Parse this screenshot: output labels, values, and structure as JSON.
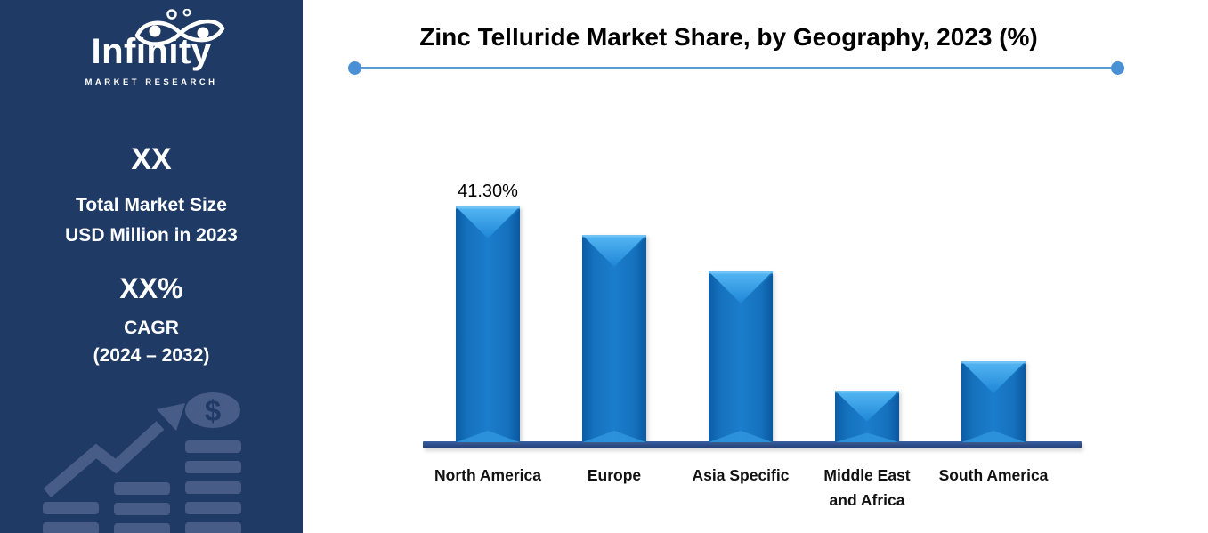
{
  "sidebar": {
    "background_color": "#1F3A64",
    "logo": {
      "name": "Infinity",
      "subtitle": "MARKET RESEARCH"
    },
    "market_size": {
      "value": "XX",
      "line1": "Total Market Size",
      "line2": "USD Million in 2023"
    },
    "cagr": {
      "value": "XX%",
      "label": "CAGR",
      "period": "(2024 – 2032)"
    },
    "graphic": {
      "coin_symbol": "$",
      "color": "#475D87"
    }
  },
  "header": {
    "divider": {
      "line_color": "#5B9BD5",
      "dot_color": "#4A90D5"
    }
  },
  "chart_data": {
    "type": "bar",
    "title": "Zinc Telluride Market Share, by Geography, 2023 (%)",
    "categories": [
      "North America",
      "Europe",
      "Asia Specific",
      "Middle East and Africa",
      "South America"
    ],
    "category_lines": [
      [
        "North America"
      ],
      [
        "Europe"
      ],
      [
        "Asia Specific"
      ],
      [
        "Middle East",
        "and Africa"
      ],
      [
        "South America"
      ]
    ],
    "values": [
      41.3,
      36.3,
      30.0,
      9.0,
      14.2
    ],
    "data_labels": [
      "41.30%",
      "",
      "",
      "",
      ""
    ],
    "unit": "%",
    "ylim": [
      0,
      45
    ],
    "grid": false,
    "legend": "none",
    "bar_color": "#1273BF",
    "bar_bevel_color": "#44AEF0",
    "axis_color": "#2D4F8E"
  }
}
